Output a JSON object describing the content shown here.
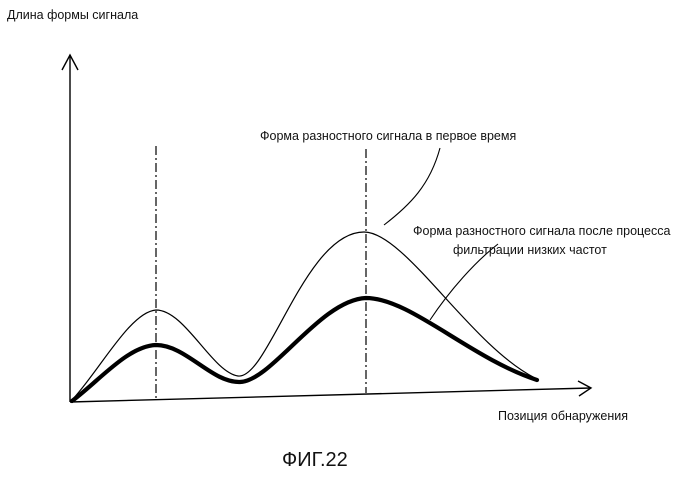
{
  "diagram": {
    "y_axis_label": "Длина формы сигнала",
    "x_axis_label": "Позиция обнаружения",
    "curve_labels": {
      "first_time": "Форма разностного сигнала в первое время",
      "after_filter_line1": "Форма разностного сигнала после процесса",
      "after_filter_line2": "фильтрации низких частот"
    },
    "caption": "ФИГ.22"
  }
}
